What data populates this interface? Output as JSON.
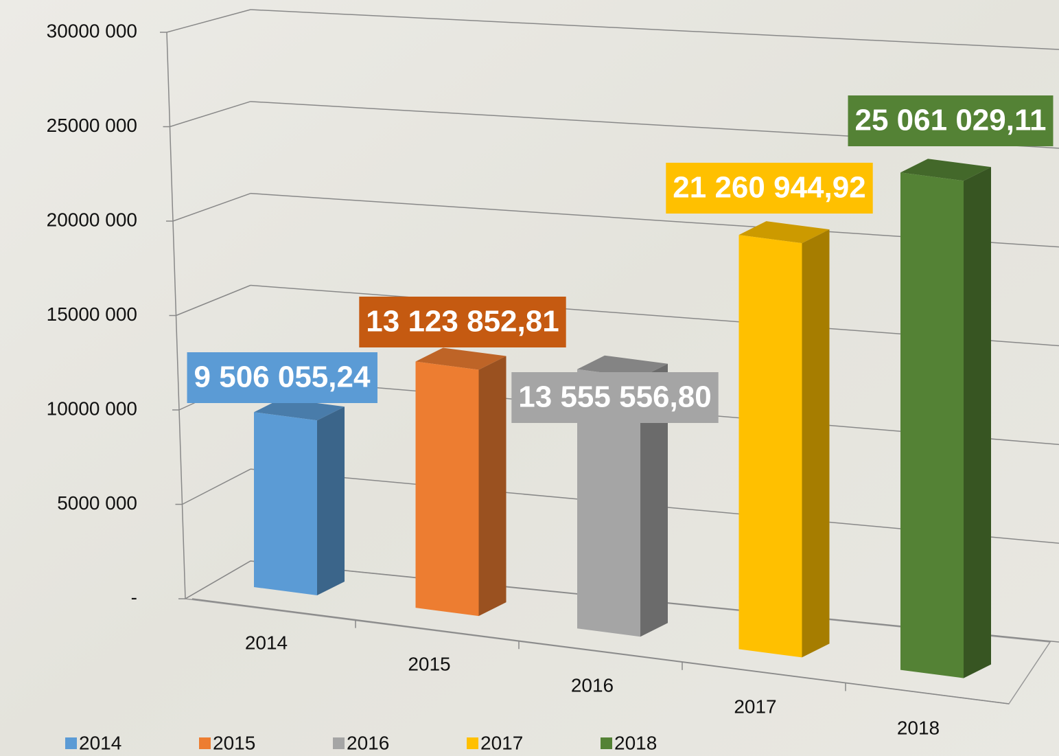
{
  "chart_data": {
    "type": "bar3d",
    "categories": [
      "2014",
      "2015",
      "2016",
      "2017",
      "2018"
    ],
    "values": [
      9506055.24,
      13123852.81,
      13555556.8,
      21260944.92,
      25061029.11
    ],
    "value_labels": [
      "9 506 055,24",
      "13 123 852,81",
      "13 555 556,80",
      "21 260 944,92",
      "25 061 029,11"
    ],
    "colors": [
      "#5b9bd5",
      "#ed7d31",
      "#a5a5a5",
      "#ffc000",
      "#548235"
    ],
    "label_colors": [
      "#5b9bd5",
      "#c55a11",
      "#a5a5a5",
      "#ffc000",
      "#548235"
    ],
    "ylim": [
      0,
      30000000
    ],
    "yticks": [
      {
        "value": 0,
        "label": "-"
      },
      {
        "value": 5000000,
        "label": "5000 000"
      },
      {
        "value": 10000000,
        "label": "10000 000"
      },
      {
        "value": 15000000,
        "label": "15000 000"
      },
      {
        "value": 20000000,
        "label": "20000 000"
      },
      {
        "value": 25000000,
        "label": "25000 000"
      },
      {
        "value": 30000000,
        "label": "30000 000"
      }
    ],
    "grid": true,
    "legend": "bottom-left"
  }
}
